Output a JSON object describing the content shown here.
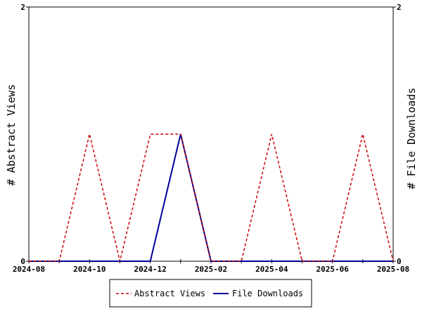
{
  "chart_data": {
    "type": "line",
    "x": [
      "2024-08",
      "2024-09",
      "2024-10",
      "2024-11",
      "2024-12",
      "2025-01",
      "2025-02",
      "2025-03",
      "2025-04",
      "2025-05",
      "2025-06",
      "2025-07",
      "2025-08"
    ],
    "x_tick_labels": [
      "2024-08",
      "2024-10",
      "2024-12",
      "2025-02",
      "2025-04",
      "2025-06",
      "2025-08"
    ],
    "series": [
      {
        "name": "Abstract Views",
        "axis": "left",
        "color": "#cc0000",
        "dash": "dashed",
        "values": [
          0,
          0,
          1,
          0,
          1,
          1,
          0,
          0,
          1,
          0,
          0,
          1,
          0
        ]
      },
      {
        "name": "File Downloads",
        "axis": "right",
        "color": "#000099",
        "dash": "solid",
        "values": [
          0,
          0,
          0,
          0,
          0,
          1,
          0,
          0,
          0,
          0,
          0,
          0,
          0
        ]
      }
    ],
    "ylabel": "# Abstract Views",
    "y2label": "# File Downloads",
    "ylim": [
      0,
      2
    ],
    "y2lim": [
      0,
      2
    ],
    "y_ticks": [
      "0",
      "2"
    ],
    "y2_ticks": [
      "0",
      "2"
    ],
    "grid": false,
    "legend": "bottom-center"
  }
}
